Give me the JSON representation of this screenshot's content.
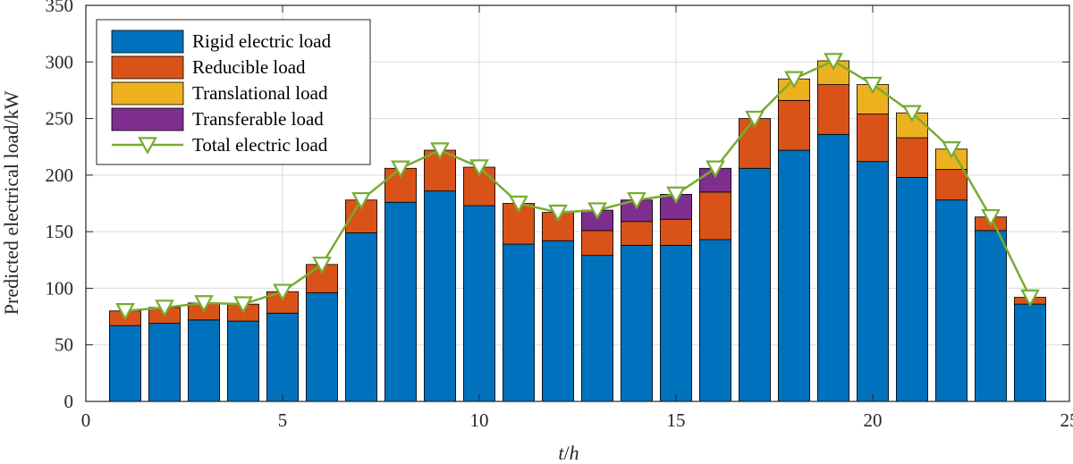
{
  "chart_data": {
    "type": "bar",
    "stacked": true,
    "title": "",
    "xlabel_var": "t",
    "xlabel_sep": "/",
    "xlabel_unit": "h",
    "ylabel": "Predicted electrical load/kW",
    "xlim": [
      0,
      25
    ],
    "ylim": [
      0,
      350
    ],
    "xticks": [
      0,
      5,
      10,
      15,
      20,
      25
    ],
    "yticks": [
      0,
      50,
      100,
      150,
      200,
      250,
      300,
      350
    ],
    "grid": true,
    "legend_position": "top-left",
    "x": [
      1,
      2,
      3,
      4,
      5,
      6,
      7,
      8,
      9,
      10,
      11,
      12,
      13,
      14,
      15,
      16,
      17,
      18,
      19,
      20,
      21,
      22,
      23,
      24
    ],
    "series": [
      {
        "name": "Rigid electric load",
        "color": "#0072BD",
        "values": [
          67,
          69,
          72,
          71,
          78,
          96,
          149,
          176,
          186,
          173,
          139,
          142,
          129,
          138,
          138,
          143,
          206,
          222,
          236,
          212,
          198,
          178,
          151,
          86
        ]
      },
      {
        "name": "Reducible load",
        "color": "#D95319",
        "values": [
          13,
          14,
          15,
          15,
          19,
          25,
          29,
          30,
          36,
          34,
          36,
          25,
          22,
          21,
          23,
          42,
          44,
          44,
          44,
          42,
          35,
          27,
          12,
          6
        ]
      },
      {
        "name": "Translational load",
        "color": "#EDB120",
        "values": [
          0,
          0,
          0,
          0,
          0,
          0,
          0,
          0,
          0,
          0,
          0,
          0,
          0,
          0,
          0,
          0,
          0,
          19,
          21,
          26,
          22,
          18,
          0,
          0
        ]
      },
      {
        "name": "Transferable load",
        "color": "#7E2F8E",
        "values": [
          0,
          0,
          0,
          0,
          0,
          0,
          0,
          0,
          0,
          0,
          0,
          0,
          18,
          19,
          22,
          21,
          0,
          0,
          0,
          0,
          0,
          0,
          0,
          0
        ]
      }
    ],
    "line": {
      "name": "Total electric load",
      "color": "#77AC30",
      "marker": "triangle-down",
      "values": [
        80,
        83,
        87,
        86,
        97,
        121,
        178,
        206,
        222,
        207,
        175,
        167,
        169,
        178,
        183,
        206,
        250,
        285,
        301,
        280,
        255,
        223,
        163,
        92
      ]
    }
  }
}
